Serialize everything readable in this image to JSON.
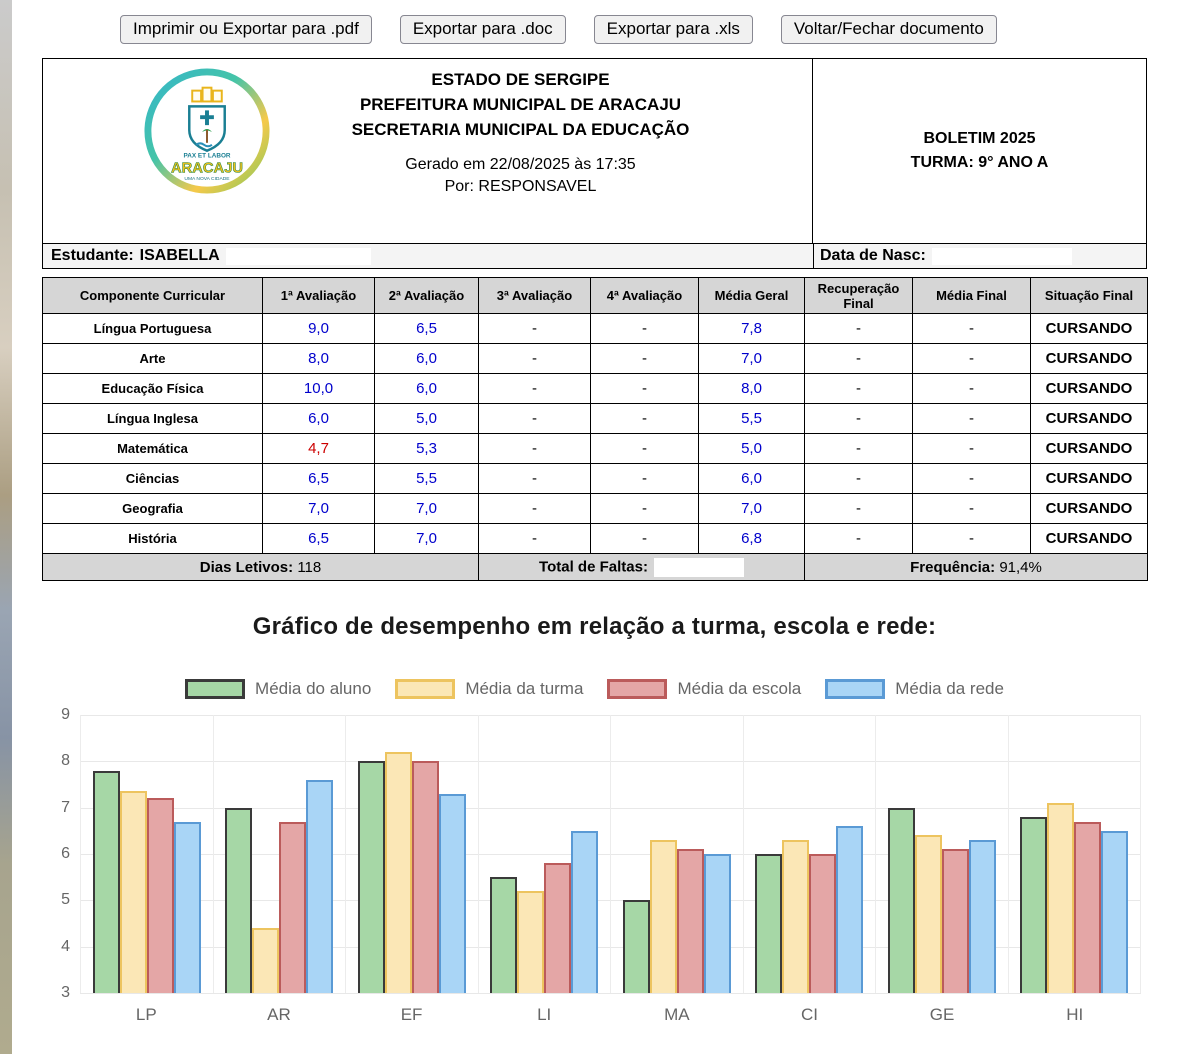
{
  "toolbar": {
    "buttons": [
      {
        "name": "export-pdf-button",
        "label": "Imprimir ou Exportar para .pdf"
      },
      {
        "name": "export-doc-button",
        "label": "Exportar para .doc"
      },
      {
        "name": "export-xls-button",
        "label": "Exportar para .xls"
      },
      {
        "name": "close-document-button",
        "label": "Voltar/Fechar documento"
      }
    ]
  },
  "header": {
    "org_line1": "ESTADO DE SERGIPE",
    "org_line2": "PREFEITURA MUNICIPAL DE ARACAJU",
    "org_line3": "SECRETARIA MUNICIPAL DA EDUCAÇÃO",
    "generated_at": "Gerado em 22/08/2025 às 17:35",
    "generated_by": "Por: RESPONSAVEL",
    "logo": {
      "name": "ARACAJU",
      "tagline": "UMA NOVA CIDADE",
      "motto": "PAX ET LABOR"
    },
    "bulletin_title": "BOLETIM 2025",
    "class_label": "TURMA: 9° ANO A"
  },
  "student": {
    "label": "Estudante:",
    "name": "ISABELLA",
    "birth_label": "Data de Nasc:",
    "birth_value": ""
  },
  "grades": {
    "columns": [
      "Componente Curricular",
      "1ª Avaliação",
      "2ª Avaliação",
      "3ª Avaliação",
      "4ª Avaliação",
      "Média Geral",
      "Recuperação Final",
      "Média Final",
      "Situação Final"
    ],
    "blue_color": "#0000cc",
    "red_color": "#cc0000",
    "rows": [
      {
        "subject": "Língua Portuguesa",
        "values": [
          "9,0",
          "6,5",
          "-",
          "-",
          "7,8",
          "-",
          "-"
        ],
        "status": "CURSANDO",
        "red_indexes": []
      },
      {
        "subject": "Arte",
        "values": [
          "8,0",
          "6,0",
          "-",
          "-",
          "7,0",
          "-",
          "-"
        ],
        "status": "CURSANDO",
        "red_indexes": []
      },
      {
        "subject": "Educação Física",
        "values": [
          "10,0",
          "6,0",
          "-",
          "-",
          "8,0",
          "-",
          "-"
        ],
        "status": "CURSANDO",
        "red_indexes": []
      },
      {
        "subject": "Língua Inglesa",
        "values": [
          "6,0",
          "5,0",
          "-",
          "-",
          "5,5",
          "-",
          "-"
        ],
        "status": "CURSANDO",
        "red_indexes": []
      },
      {
        "subject": "Matemática",
        "values": [
          "4,7",
          "5,3",
          "-",
          "-",
          "5,0",
          "-",
          "-"
        ],
        "status": "CURSANDO",
        "red_indexes": [
          0
        ]
      },
      {
        "subject": "Ciências",
        "values": [
          "6,5",
          "5,5",
          "-",
          "-",
          "6,0",
          "-",
          "-"
        ],
        "status": "CURSANDO",
        "red_indexes": []
      },
      {
        "subject": "Geografia",
        "values": [
          "7,0",
          "7,0",
          "-",
          "-",
          "7,0",
          "-",
          "-"
        ],
        "status": "CURSANDO",
        "red_indexes": []
      },
      {
        "subject": "História",
        "values": [
          "6,5",
          "7,0",
          "-",
          "-",
          "6,8",
          "-",
          "-"
        ],
        "status": "CURSANDO",
        "red_indexes": []
      }
    ],
    "summary": {
      "school_days_label": "Dias Letivos:",
      "school_days": "118",
      "absences_label": "Total de Faltas:",
      "absences": "",
      "frequency_label": "Frequência:",
      "frequency": "91,4%"
    }
  },
  "chart": {
    "title": "Gráfico de desempenho em relação a turma, escola e rede:"
  },
  "chart_data": {
    "type": "bar",
    "title": "Gráfico de desempenho em relação a turma, escola e rede:",
    "categories": [
      "LP",
      "AR",
      "EF",
      "LI",
      "MA",
      "CI",
      "GE",
      "HI"
    ],
    "series": [
      {
        "name": "Média do aluno",
        "color": "#a6d7a6",
        "border": "#3a3a3a",
        "values": [
          7.8,
          7.0,
          8.0,
          5.5,
          5.0,
          6.0,
          7.0,
          6.8
        ]
      },
      {
        "name": "Média da turma",
        "color": "#fbe7b6",
        "border": "#edc45f",
        "values": [
          7.35,
          4.4,
          8.2,
          5.2,
          6.3,
          6.3,
          6.4,
          7.1
        ]
      },
      {
        "name": "Média da escola",
        "color": "#e4a6a6",
        "border": "#bb5b5b",
        "values": [
          7.2,
          6.7,
          8.0,
          5.8,
          6.1,
          6.0,
          6.1,
          6.7
        ]
      },
      {
        "name": "Média da rede",
        "color": "#a9d5f6",
        "border": "#5a9ad5",
        "values": [
          6.7,
          7.6,
          7.3,
          6.5,
          6.0,
          6.6,
          6.3,
          6.5
        ]
      }
    ],
    "ylim": [
      3,
      9
    ],
    "yticks": [
      3,
      4,
      5,
      6,
      7,
      8,
      9
    ],
    "grid": true,
    "legend_position": "top",
    "xlabel": "",
    "ylabel": ""
  }
}
